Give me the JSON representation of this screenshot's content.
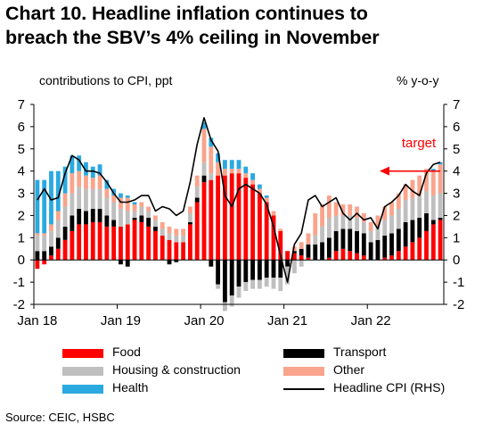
{
  "title_line1": "Chart 10. Headline inflation continues to",
  "title_line2": "breach the SBV’s 4% ceiling in November",
  "source": "Source:  CEIC, HSBC",
  "chart_data": {
    "type": "bar",
    "stacked": true,
    "ylabel_left": "contributions to CPI, ppt",
    "ylabel_right": "% y-o-y",
    "ylim": [
      -2,
      7
    ],
    "yticks": [
      -2,
      -1,
      0,
      1,
      2,
      3,
      4,
      5,
      6,
      7
    ],
    "xtick_labels": [
      "Jan 18",
      "Jan 19",
      "Jan 20",
      "Jan 21",
      "Jan 22"
    ],
    "xtick_month_index": [
      0,
      12,
      24,
      36,
      48
    ],
    "annotation": {
      "text": "target",
      "value": 4
    },
    "legend": [
      "Food",
      "Transport",
      "Housing & construction",
      "Other",
      "Health",
      "Headline CPI (RHS)"
    ],
    "colors": {
      "Food": "#ff0000",
      "Transport": "#000000",
      "Housing & construction": "#bfbfbf",
      "Other": "#f9a48c",
      "Health": "#29a9e0",
      "Headline CPI (RHS)": "#000000",
      "target": "#ff0000"
    },
    "months": [
      "Jan 18",
      "Feb 18",
      "Mar 18",
      "Apr 18",
      "May 18",
      "Jun 18",
      "Jul 18",
      "Aug 18",
      "Sep 18",
      "Oct 18",
      "Nov 18",
      "Dec 18",
      "Jan 19",
      "Feb 19",
      "Mar 19",
      "Apr 19",
      "May 19",
      "Jun 19",
      "Jul 19",
      "Aug 19",
      "Sep 19",
      "Oct 19",
      "Nov 19",
      "Dec 19",
      "Jan 20",
      "Feb 20",
      "Mar 20",
      "Apr 20",
      "May 20",
      "Jun 20",
      "Jul 20",
      "Aug 20",
      "Sep 20",
      "Oct 20",
      "Nov 20",
      "Dec 20",
      "Jan 21",
      "Feb 21",
      "Mar 21",
      "Apr 21",
      "May 21",
      "Jun 21",
      "Jul 21",
      "Aug 21",
      "Sep 21",
      "Oct 21",
      "Nov 21",
      "Dec 21",
      "Jan 22",
      "Feb 22",
      "Mar 22",
      "Apr 22",
      "May 22",
      "Jun 22",
      "Jul 22",
      "Aug 22",
      "Sep 22",
      "Oct 22",
      "Nov 22"
    ],
    "series": [
      {
        "name": "Food",
        "values": [
          -0.4,
          -0.2,
          0.2,
          0.5,
          0.9,
          1.3,
          1.6,
          1.6,
          1.7,
          1.7,
          1.5,
          1.5,
          1.5,
          1.6,
          1.8,
          1.7,
          1.5,
          1.3,
          1.1,
          0.9,
          0.8,
          0.8,
          1.6,
          2.6,
          3.5,
          3.6,
          3.8,
          3.8,
          3.9,
          3.9,
          3.7,
          3.4,
          3.0,
          2.6,
          2.0,
          1.3,
          0.4,
          0.3,
          0.2,
          0.1,
          0.0,
          0.0,
          0.1,
          0.4,
          0.5,
          0.4,
          0.3,
          0.2,
          0.0,
          0.0,
          0.1,
          0.2,
          0.4,
          0.6,
          0.8,
          1.0,
          1.3,
          1.6,
          1.8
        ]
      },
      {
        "name": "Transport",
        "values": [
          0.4,
          0.4,
          0.4,
          0.5,
          0.6,
          0.7,
          0.7,
          0.6,
          0.6,
          0.6,
          0.5,
          0.3,
          -0.2,
          -0.3,
          0.1,
          0.3,
          0.4,
          0.2,
          0.0,
          -0.2,
          -0.1,
          0.0,
          0.1,
          0.2,
          0.3,
          -0.3,
          -1.1,
          -1.9,
          -1.6,
          -1.2,
          -1.0,
          -0.9,
          -0.9,
          -0.8,
          -0.8,
          -0.8,
          -0.3,
          0.1,
          0.3,
          0.6,
          0.7,
          0.8,
          0.9,
          0.9,
          0.9,
          1.0,
          1.0,
          1.0,
          0.8,
          0.9,
          1.0,
          1.0,
          1.0,
          1.1,
          1.0,
          0.9,
          0.8,
          0.2,
          0.1
        ]
      },
      {
        "name": "Housing & construction",
        "values": [
          0.7,
          0.7,
          0.7,
          0.8,
          0.9,
          1.0,
          1.0,
          1.0,
          0.9,
          0.9,
          0.8,
          0.8,
          0.8,
          0.6,
          0.3,
          0.4,
          0.3,
          0.3,
          0.3,
          0.3,
          0.3,
          0.3,
          0.4,
          0.5,
          0.6,
          0.3,
          -0.2,
          -0.4,
          -0.5,
          -0.5,
          -0.4,
          -0.4,
          -0.4,
          -0.4,
          -0.5,
          -0.6,
          -0.8,
          -0.6,
          -0.3,
          0.0,
          0.4,
          0.7,
          0.9,
          0.7,
          0.6,
          0.6,
          0.6,
          0.5,
          0.5,
          0.6,
          0.7,
          0.8,
          0.9,
          1.0,
          1.0,
          1.0,
          1.0,
          1.1,
          1.1
        ]
      },
      {
        "name": "Other",
        "values": [
          0.1,
          0.1,
          0.3,
          0.4,
          0.6,
          0.9,
          0.7,
          0.6,
          0.5,
          0.6,
          0.4,
          0.3,
          0.5,
          0.6,
          0.3,
          0.2,
          0.2,
          0.2,
          0.3,
          0.3,
          0.3,
          0.3,
          0.3,
          0.5,
          1.5,
          1.2,
          0.6,
          0.3,
          0.2,
          0.2,
          0.2,
          0.2,
          0.2,
          0.2,
          0.2,
          0.1,
          0.0,
          0.2,
          0.3,
          0.5,
          1.0,
          1.0,
          1.0,
          0.6,
          0.5,
          0.5,
          0.5,
          0.4,
          0.4,
          0.5,
          0.6,
          0.6,
          0.7,
          0.7,
          0.8,
          0.9,
          1.0,
          1.1,
          1.3
        ]
      },
      {
        "name": "Health",
        "values": [
          2.4,
          2.4,
          2.4,
          1.8,
          1.2,
          0.8,
          0.7,
          0.6,
          0.5,
          0.5,
          0.4,
          0.3,
          0.2,
          0.1,
          0.1,
          0.0,
          0.0,
          0.0,
          0.0,
          0.0,
          0.0,
          0.0,
          0.0,
          0.0,
          0.3,
          0.4,
          0.4,
          0.4,
          0.4,
          0.4,
          0.3,
          0.3,
          0.2,
          0.1,
          0.0,
          0.0,
          0.0,
          0.0,
          0.0,
          0.0,
          0.0,
          0.0,
          0.0,
          0.0,
          0.0,
          0.0,
          0.0,
          0.0,
          0.0,
          0.0,
          0.0,
          0.0,
          0.0,
          0.0,
          0.0,
          0.0,
          0.0,
          0.1,
          0.1
        ]
      },
      {
        "name": "Headline CPI (RHS)",
        "type": "line",
        "values": [
          2.7,
          3.2,
          2.7,
          2.8,
          3.9,
          4.7,
          4.5,
          4.0,
          4.0,
          3.9,
          3.5,
          3.0,
          2.6,
          2.6,
          2.7,
          2.9,
          2.9,
          2.2,
          2.4,
          2.3,
          2.0,
          2.2,
          3.5,
          5.2,
          6.4,
          5.4,
          4.9,
          2.9,
          2.4,
          3.2,
          3.4,
          3.2,
          3.0,
          2.5,
          1.5,
          0.2,
          -1.0,
          0.7,
          1.2,
          2.7,
          2.9,
          2.4,
          2.6,
          2.8,
          2.1,
          1.8,
          2.1,
          1.8,
          1.9,
          1.4,
          2.4,
          2.6,
          2.9,
          3.4,
          3.1,
          2.9,
          3.9,
          4.3,
          4.4
        ]
      }
    ]
  }
}
